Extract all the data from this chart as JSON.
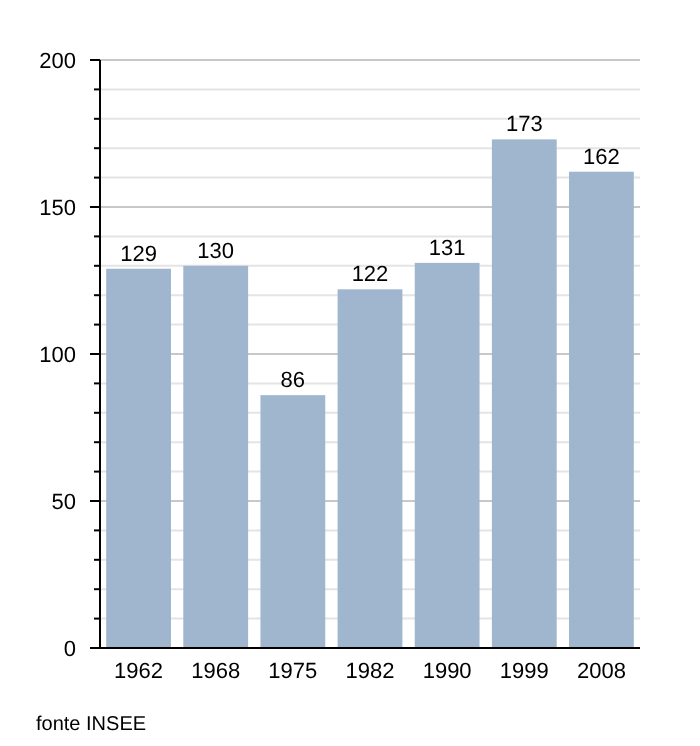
{
  "chart_data": {
    "type": "bar",
    "categories": [
      "1962",
      "1968",
      "1975",
      "1982",
      "1990",
      "1999",
      "2008"
    ],
    "values": [
      129,
      130,
      86,
      122,
      131,
      173,
      162
    ],
    "color": "#a0b6ce",
    "data_labels": true,
    "grid": "y",
    "ylim": [
      0,
      200
    ],
    "yticks": [
      0,
      {
        "value": 10,
        "label": null
      },
      {
        "value": 20,
        "label": null
      },
      {
        "value": 30,
        "label": null
      },
      {
        "value": 40,
        "label": null
      },
      50,
      {
        "value": 60,
        "label": null
      },
      {
        "value": 70,
        "label": null
      },
      {
        "value": 80,
        "label": null
      },
      {
        "value": 90,
        "label": null
      },
      100,
      {
        "value": 110,
        "label": null
      },
      {
        "value": 120,
        "label": null
      },
      {
        "value": 130,
        "label": null
      },
      {
        "value": 140,
        "label": null
      },
      150,
      {
        "value": 160,
        "label": null
      },
      {
        "value": 170,
        "label": null
      },
      {
        "value": 180,
        "label": null
      },
      {
        "value": 190,
        "label": null
      },
      200
    ],
    "annotations": [
      "fonte INSEE"
    ]
  }
}
